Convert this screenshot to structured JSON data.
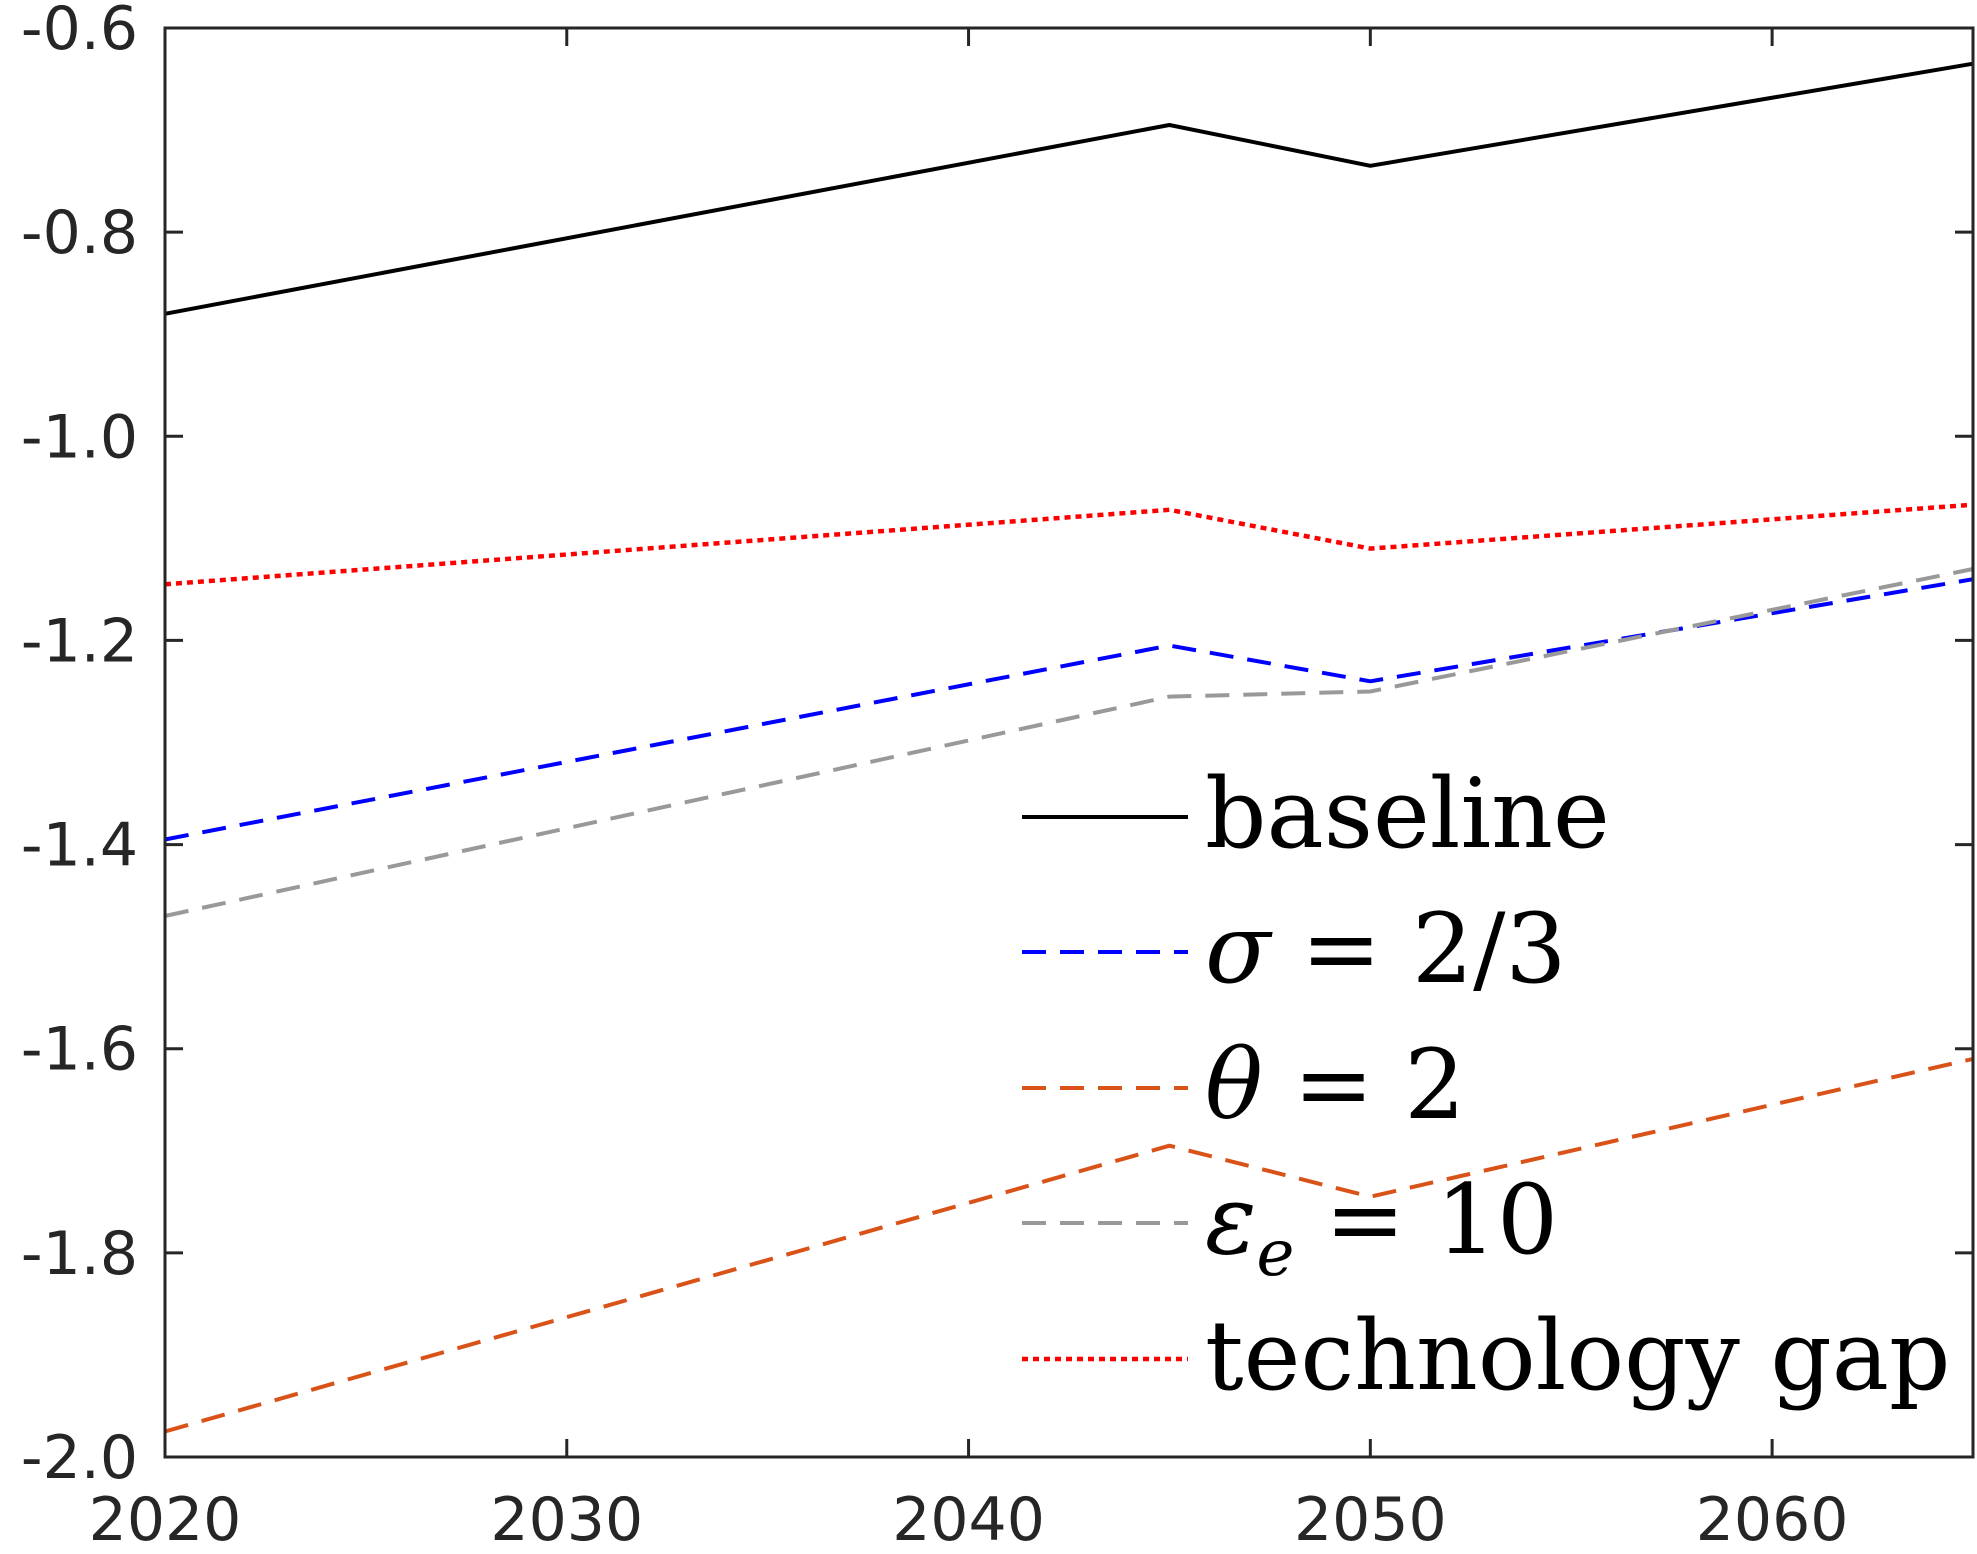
{
  "chart_data": {
    "type": "line",
    "x": [
      2020,
      2045,
      2050,
      2065
    ],
    "xlim": [
      2020,
      2065
    ],
    "ylim": [
      -2.0,
      -0.6
    ],
    "xticks": [
      2020,
      2030,
      2040,
      2050,
      2060
    ],
    "yticks": [
      -2.0,
      -1.8,
      -1.6,
      -1.4,
      -1.2,
      -1.0,
      -0.8,
      -0.6
    ],
    "xtick_labels": [
      "2020",
      "2030",
      "2040",
      "2050",
      "2060"
    ],
    "ytick_labels": [
      "-2.0",
      "-1.8",
      "-1.6",
      "-1.4",
      "-1.2",
      "-1.0",
      "-0.8",
      "-0.6"
    ],
    "grid": false,
    "legend_position": "bottom-right",
    "series": [
      {
        "name": "baseline",
        "values": [
          -0.88,
          -0.695,
          -0.735,
          -0.635
        ],
        "color": "#000000",
        "style": "solid"
      },
      {
        "name": "σ = 2/3",
        "values": [
          -1.395,
          -1.205,
          -1.24,
          -1.14
        ],
        "color": "#0000ff",
        "style": "dashed"
      },
      {
        "name": "θ = 2",
        "values": [
          -1.975,
          -1.695,
          -1.745,
          -1.61
        ],
        "color": "#d95319",
        "style": "dashed"
      },
      {
        "name": "ε_e = 10",
        "values": [
          -1.47,
          -1.255,
          -1.25,
          -1.13
        ],
        "color": "#999999",
        "style": "dashed"
      },
      {
        "name": "technology gap",
        "values": [
          -1.145,
          -1.072,
          -1.11,
          -1.067
        ],
        "color": "#ff0000",
        "style": "dotted"
      }
    ]
  }
}
